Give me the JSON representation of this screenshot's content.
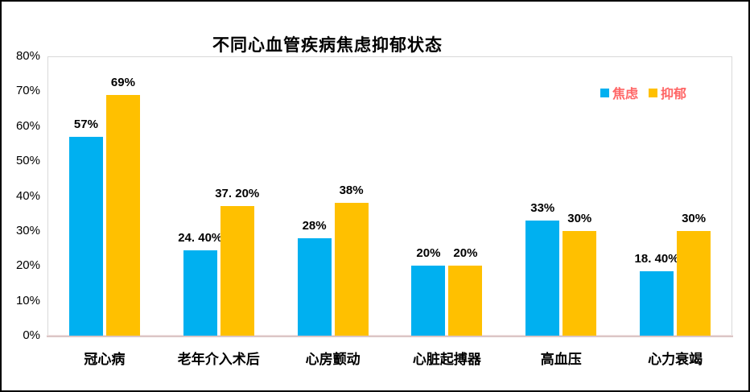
{
  "chart_data": {
    "type": "bar",
    "title": "不同心血管疾病焦虑抑郁状态",
    "categories": [
      "冠心病",
      "老年介入术后",
      "心房颤动",
      "心脏起搏器",
      "高血压",
      "心力衰竭"
    ],
    "series": [
      {
        "name": "焦虑",
        "color": "#00b0f0",
        "values": [
          57,
          24.4,
          28,
          20,
          33,
          18.4
        ],
        "labels": [
          "57%",
          "24. 40%",
          "28%",
          "20%",
          "33%",
          "18. 40%"
        ]
      },
      {
        "name": "抑郁",
        "color": "#ffc000",
        "values": [
          69,
          37.2,
          38,
          20,
          30,
          30
        ],
        "labels": [
          "69%",
          "37. 20%",
          "38%",
          "20%",
          "30%",
          "30%"
        ]
      }
    ],
    "xlabel": "",
    "ylabel": "",
    "ylim": [
      0,
      80
    ],
    "ytick_step": 10,
    "yticks": [
      "0%",
      "10%",
      "20%",
      "30%",
      "40%",
      "50%",
      "60%",
      "70%",
      "80%"
    ],
    "grid": false,
    "legend_position": "top-right"
  },
  "colors": {
    "series_anxiety": "#00b0f0",
    "series_depression": "#ffc000",
    "legend_text": "#ff6666",
    "axis_line": "#dcc6c6",
    "plot_border": "#d9d9d9",
    "chart_border": "#000000"
  }
}
